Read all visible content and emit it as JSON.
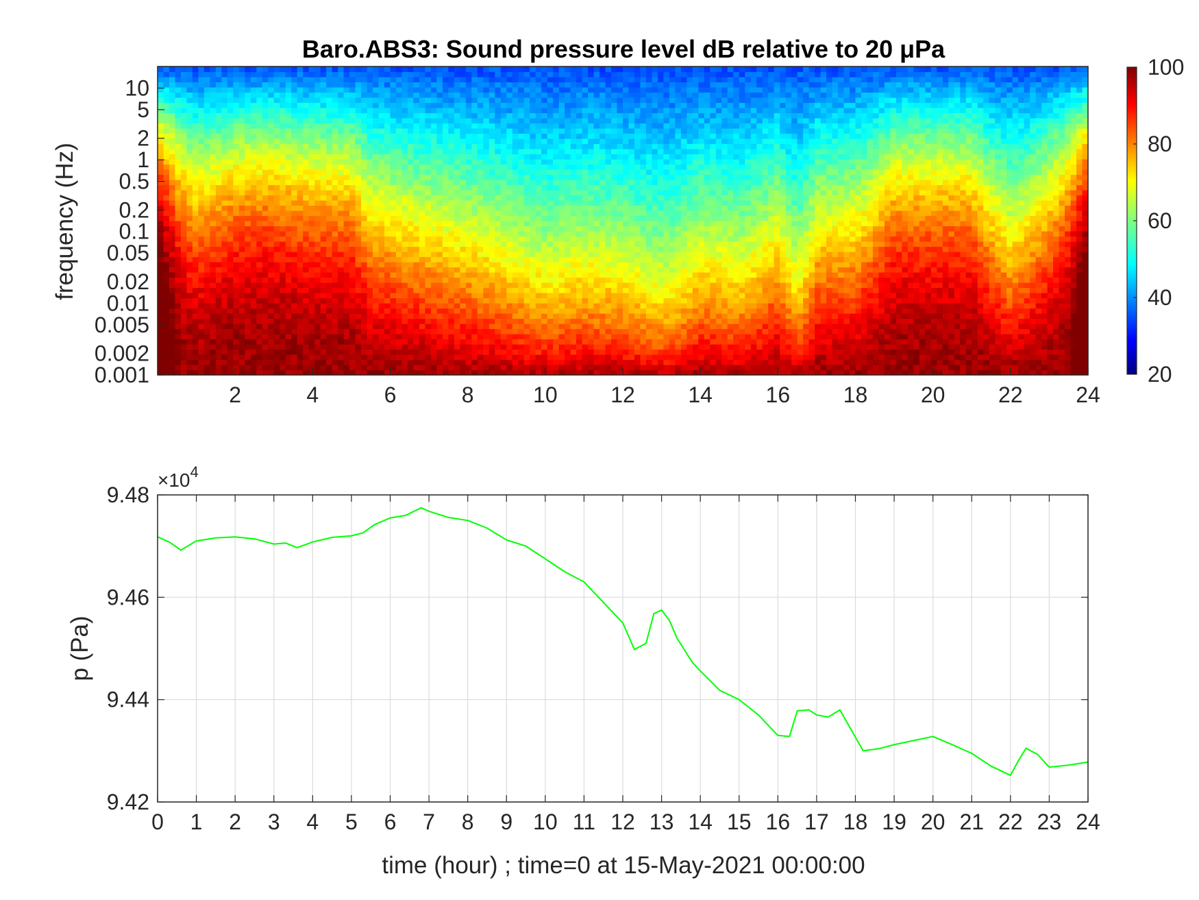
{
  "chart_data": [
    {
      "type": "heatmap",
      "title": "Baro.ABS3: Sound pressure level dB relative to 20 μPa",
      "xlabel": "",
      "ylabel": "frequency (Hz)",
      "xlim": [
        0,
        24
      ],
      "x_ticks": [
        "2",
        "4",
        "6",
        "8",
        "10",
        "12",
        "14",
        "16",
        "18",
        "20",
        "22",
        "24"
      ],
      "y_scale": "log",
      "ylim": [
        0.001,
        20
      ],
      "y_ticks": [
        "10",
        "5",
        "2",
        "1",
        "0.5",
        "0.2",
        "0.1",
        "0.05",
        "0.02",
        "0.01",
        "0.005",
        "0.002",
        "0.001"
      ],
      "colorbar": {
        "min": 20,
        "max": 100,
        "ticks": [
          "100",
          "80",
          "60",
          "40",
          "20"
        ],
        "colormap": "jet"
      },
      "activity_hours": [
        [
          0.0,
          0.3
        ],
        [
          1.0,
          0.55
        ],
        [
          2.0,
          0.45
        ],
        [
          3.0,
          0.45
        ],
        [
          4.0,
          0.5
        ],
        [
          5.0,
          0.5
        ],
        [
          5.5,
          0.7
        ],
        [
          6.0,
          0.75
        ],
        [
          7.0,
          0.85
        ],
        [
          8.0,
          0.95
        ],
        [
          9.0,
          1.1
        ],
        [
          10.0,
          1.3
        ],
        [
          11.0,
          1.2
        ],
        [
          12.0,
          1.25
        ],
        [
          12.8,
          1.45
        ],
        [
          13.2,
          1.5
        ],
        [
          14.0,
          1.1
        ],
        [
          15.0,
          1.25
        ],
        [
          16.0,
          0.9
        ],
        [
          16.5,
          1.35
        ],
        [
          17.0,
          0.85
        ],
        [
          18.0,
          0.8
        ],
        [
          19.0,
          0.5
        ],
        [
          20.0,
          0.5
        ],
        [
          21.0,
          0.5
        ],
        [
          22.0,
          0.9
        ],
        [
          23.0,
          0.6
        ],
        [
          24.0,
          0.3
        ]
      ],
      "grid": false
    },
    {
      "type": "line",
      "title": "",
      "xlabel": "time (hour) ; time=0 at 15-May-2021 00:00:00",
      "ylabel": "p (Pa)",
      "y_exponent_label": "×10",
      "y_exponent_power": "4",
      "xlim": [
        0,
        24
      ],
      "ylim": [
        94200,
        94800
      ],
      "x_ticks": [
        "0",
        "1",
        "2",
        "3",
        "4",
        "5",
        "6",
        "7",
        "8",
        "9",
        "10",
        "11",
        "12",
        "13",
        "14",
        "15",
        "16",
        "17",
        "18",
        "19",
        "20",
        "21",
        "22",
        "23",
        "24"
      ],
      "y_ticks": [
        "9.48",
        "9.46",
        "9.44",
        "9.42"
      ],
      "grid": true,
      "color": "#00ff00",
      "x": [
        0,
        0.3,
        0.6,
        1.0,
        1.5,
        2.0,
        2.5,
        3.0,
        3.3,
        3.6,
        4.0,
        4.5,
        5.0,
        5.3,
        5.6,
        6.0,
        6.4,
        6.8,
        7.0,
        7.5,
        8.0,
        8.5,
        9.0,
        9.5,
        10.0,
        10.5,
        11.0,
        11.5,
        12.0,
        12.3,
        12.6,
        12.8,
        13.0,
        13.2,
        13.4,
        13.8,
        14.0,
        14.5,
        15.0,
        15.5,
        16.0,
        16.3,
        16.5,
        16.8,
        17.0,
        17.3,
        17.6,
        17.9,
        18.2,
        18.6,
        19.0,
        19.5,
        20.0,
        20.5,
        21.0,
        21.5,
        22.0,
        22.2,
        22.4,
        22.7,
        23.0,
        23.5,
        24.0
      ],
      "y": [
        94718,
        94708,
        94692,
        94710,
        94716,
        94718,
        94714,
        94704,
        94706,
        94697,
        94708,
        94717,
        94720,
        94726,
        94742,
        94755,
        94760,
        94775,
        94768,
        94756,
        94750,
        94735,
        94712,
        94700,
        94675,
        94650,
        94630,
        94590,
        94550,
        94498,
        94510,
        94568,
        94575,
        94555,
        94520,
        94472,
        94456,
        94418,
        94400,
        94370,
        94330,
        94328,
        94378,
        94380,
        94370,
        94366,
        94380,
        94340,
        94300,
        94304,
        94312,
        94320,
        94328,
        94312,
        94295,
        94270,
        94252,
        94280,
        94305,
        94293,
        94268,
        94272,
        94278
      ]
    }
  ]
}
